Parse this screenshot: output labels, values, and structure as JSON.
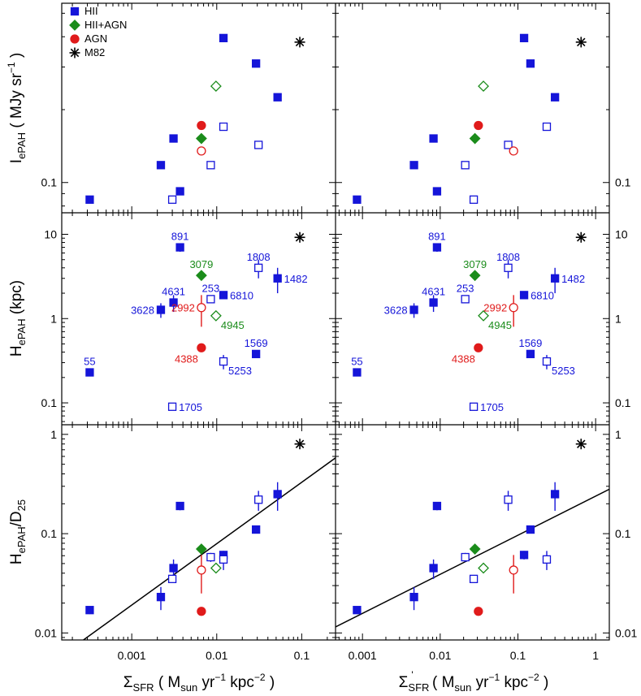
{
  "colors": {
    "HII": "#1515d9",
    "HII+AGN": "#1b8c1b",
    "AGN": "#e01b1b",
    "M82": "#000000"
  },
  "chart_data": {
    "type": "scatter",
    "legend": {
      "placement": "top-left",
      "entries": [
        "HII",
        "HII+AGN",
        "AGN",
        "M82"
      ]
    },
    "x_axes": {
      "left": {
        "scale": "log",
        "xlim": [
          0.00015,
          0.25
        ],
        "ticks": [
          0.001,
          0.01,
          0.1
        ],
        "tick_labels": [
          "0.001",
          "0.01",
          "0.1"
        ],
        "label_main": "Σ",
        "label_sub": "SFR",
        "label_rest": " ( M",
        "label_sub2": "sun",
        "label_rest2": " yr",
        "label_sup": "−1",
        "label_rest3": " kpc",
        "label_sup2": "−2",
        "label_end": ")"
      },
      "right": {
        "scale": "log",
        "xlim": [
          0.00045,
          1.5
        ],
        "ticks": [
          0.001,
          0.01,
          0.1,
          1
        ],
        "tick_labels": [
          "0.001",
          "0.01",
          "0.1",
          "1"
        ],
        "label_main": "Σ",
        "label_sub": "SFR",
        "label_prime": "'",
        "label_rest": " ( M",
        "label_sub2": "sun",
        "label_rest2": " yr",
        "label_sup": "−1",
        "label_rest3": " kpc",
        "label_sup2": "−2",
        "label_end": ")"
      }
    },
    "rows": [
      {
        "key": "I",
        "ylabel_main": "I",
        "ylabel_sub": "ePAH",
        "ylabel_rest": " ( MJy sr",
        "ylabel_sup": "−1",
        "ylabel_end": ")",
        "scale": "log",
        "ylim": [
          0.075,
          0.55
        ],
        "ticks": [
          0.1
        ],
        "tick_labels": [
          "0.1"
        ]
      },
      {
        "key": "H",
        "ylabel_main": "H",
        "ylabel_sub": "ePAH",
        "ylabel_rest": " (kpc)",
        "ylabel_sup": "",
        "ylabel_end": "",
        "scale": "log",
        "ylim": [
          0.055,
          18
        ],
        "ticks": [
          0.1,
          1,
          10
        ],
        "tick_labels": [
          "0.1",
          "1",
          "10"
        ]
      },
      {
        "key": "R",
        "ylabel_main": "H",
        "ylabel_sub": "ePAH",
        "ylabel_rest": "/D",
        "ylabel_sub2": "25",
        "scale": "log",
        "ylim": [
          0.0085,
          1.25
        ],
        "ticks": [
          0.01,
          0.1,
          1
        ],
        "tick_labels": [
          "0.01",
          "0.1",
          "1"
        ]
      }
    ],
    "fit_lines": {
      "left": {
        "x": [
          0.00027,
          0.25
        ],
        "y": [
          0.0085,
          0.58
        ]
      },
      "right": {
        "x": [
          0.00045,
          1.5
        ],
        "y": [
          0.0115,
          0.28
        ]
      }
    },
    "galaxies": [
      {
        "name": "55",
        "class": "HII",
        "open": false,
        "sfr": 0.00032,
        "sfr_prime": 0.00085,
        "I": 0.085,
        "H": 0.23,
        "H_err": 0.0,
        "ratio": 0.017,
        "ratio_err": 0.0015,
        "label_pos": "above"
      },
      {
        "name": "3628",
        "class": "HII",
        "open": false,
        "sfr": 0.0022,
        "sfr_prime": 0.0046,
        "I": 0.118,
        "H": 1.27,
        "H_err": 0.25,
        "ratio": 0.023,
        "ratio_err": 0.006,
        "label_pos": "left"
      },
      {
        "name": "4631",
        "class": "HII",
        "open": false,
        "sfr": 0.0031,
        "sfr_prime": 0.0082,
        "I": 0.152,
        "H": 1.55,
        "H_err": 0.35,
        "ratio": 0.045,
        "ratio_err": 0.01,
        "label_pos": "above"
      },
      {
        "name": "891",
        "class": "HII",
        "open": false,
        "sfr": 0.0037,
        "sfr_prime": 0.0091,
        "I": 0.092,
        "H": 7.0,
        "H_err": 0.8,
        "ratio": 0.19,
        "ratio_err": 0.018,
        "label_pos": "above"
      },
      {
        "name": "6810",
        "class": "HII",
        "open": false,
        "sfr": 0.012,
        "sfr_prime": 0.12,
        "I": 0.395,
        "H": 1.9,
        "H_err": 0.15,
        "ratio": 0.061,
        "ratio_err": 0.006,
        "label_pos": "right"
      },
      {
        "name": "1569",
        "class": "HII",
        "open": false,
        "sfr": 0.029,
        "sfr_prime": 0.145,
        "I": 0.31,
        "H": 0.38,
        "H_err": 0.0,
        "ratio": 0.11,
        "ratio_err": 0.008,
        "label_pos": "above"
      },
      {
        "name": "1482",
        "class": "HII",
        "open": false,
        "sfr": 0.052,
        "sfr_prime": 0.3,
        "I": 0.225,
        "H": 3.0,
        "H_err": 1.0,
        "ratio": 0.25,
        "ratio_err": 0.08,
        "label_pos": "right"
      },
      {
        "name": "253",
        "class": "HII",
        "open": true,
        "sfr": 0.0085,
        "sfr_prime": 0.021,
        "I": 0.118,
        "H": 1.7,
        "H_err": 0.0,
        "ratio": 0.058,
        "ratio_err": 0.006,
        "label_pos": "above"
      },
      {
        "name": "1705",
        "class": "HII",
        "open": true,
        "sfr": 0.003,
        "sfr_prime": 0.027,
        "I": 0.085,
        "H": 0.09,
        "H_err": 0.0,
        "ratio": 0.035,
        "ratio_err": 0.003,
        "label_pos": "right"
      },
      {
        "name": "5253",
        "class": "HII",
        "open": true,
        "sfr": 0.012,
        "sfr_prime": 0.235,
        "I": 0.17,
        "H": 0.31,
        "H_err": 0.06,
        "ratio": 0.055,
        "ratio_err": 0.012,
        "label_pos": "below-right"
      },
      {
        "name": "1808",
        "class": "HII",
        "open": true,
        "sfr": 0.031,
        "sfr_prime": 0.075,
        "I": 0.143,
        "H": 4.0,
        "H_err": 1.0,
        "ratio": 0.22,
        "ratio_err": 0.05,
        "label_pos": "above"
      },
      {
        "name": "3079",
        "class": "HII+AGN",
        "open": false,
        "sfr": 0.0066,
        "sfr_prime": 0.028,
        "I": 0.152,
        "H": 3.25,
        "H_err": 0.0,
        "ratio": 0.07,
        "ratio_err": 0.0,
        "label_pos": "above"
      },
      {
        "name": "4945",
        "class": "HII+AGN",
        "open": true,
        "sfr": 0.0098,
        "sfr_prime": 0.036,
        "I": 0.25,
        "H": 1.08,
        "H_err": 0.0,
        "ratio": 0.045,
        "ratio_err": 0.0,
        "label_pos": "below-right"
      },
      {
        "name": "4388",
        "class": "AGN",
        "open": false,
        "sfr": 0.0066,
        "sfr_prime": 0.031,
        "I": 0.172,
        "H": 0.45,
        "H_err": 0.0,
        "ratio": 0.0165,
        "ratio_err": 0.0,
        "label_pos": "below-left"
      },
      {
        "name": "2992",
        "class": "AGN",
        "open": true,
        "sfr": 0.0066,
        "sfr_prime": 0.088,
        "I": 0.135,
        "H": 1.35,
        "H_err": 0.55,
        "ratio": 0.043,
        "ratio_err": 0.018,
        "label_pos": "left"
      },
      {
        "name": "M82",
        "class": "M82",
        "open": false,
        "sfr": 0.095,
        "sfr_prime": 0.65,
        "I": 0.38,
        "H": 9.2,
        "H_err": 0.0,
        "ratio": 0.8,
        "ratio_err": 0.0,
        "label_pos": "none"
      }
    ]
  }
}
